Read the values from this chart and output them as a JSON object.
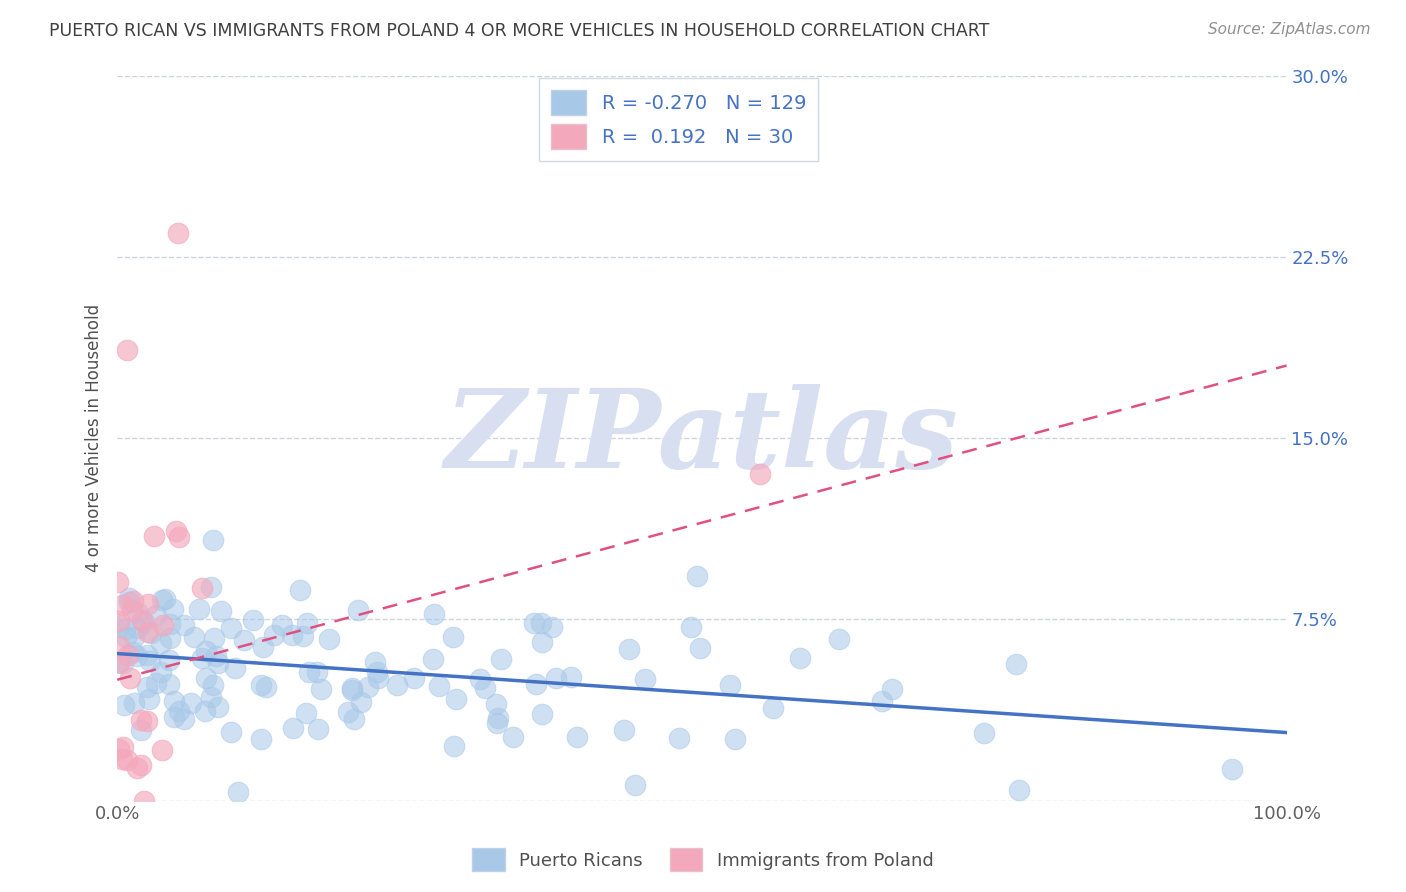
{
  "title": "PUERTO RICAN VS IMMIGRANTS FROM POLAND 4 OR MORE VEHICLES IN HOUSEHOLD CORRELATION CHART",
  "source": "Source: ZipAtlas.com",
  "xlabel": "",
  "ylabel": "4 or more Vehicles in Household",
  "watermark": "ZIPatlas",
  "xmin": 0.0,
  "xmax": 1.0,
  "ymin": 0.0,
  "ymax": 0.3,
  "yticks": [
    0.0,
    0.075,
    0.15,
    0.225,
    0.3
  ],
  "ytick_labels": [
    "",
    "7.5%",
    "15.0%",
    "22.5%",
    "30.0%"
  ],
  "xticks": [
    0.0,
    1.0
  ],
  "xtick_labels": [
    "0.0%",
    "100.0%"
  ],
  "blue_R": -0.27,
  "blue_N": 129,
  "pink_R": 0.192,
  "pink_N": 30,
  "blue_scatter_color": "#A8C8E8",
  "blue_line_color": "#4472C4",
  "pink_scatter_color": "#F4A8BC",
  "pink_line_color": "#E05080",
  "legend_color": "#4472C4",
  "title_color": "#404040",
  "source_color": "#909090",
  "watermark_color": "#D8DFF0",
  "background_color": "#FFFFFF",
  "grid_color": "#C8D0DC",
  "blue_legend_patch": "#A8C8E8",
  "pink_legend_patch": "#F4A8BC"
}
